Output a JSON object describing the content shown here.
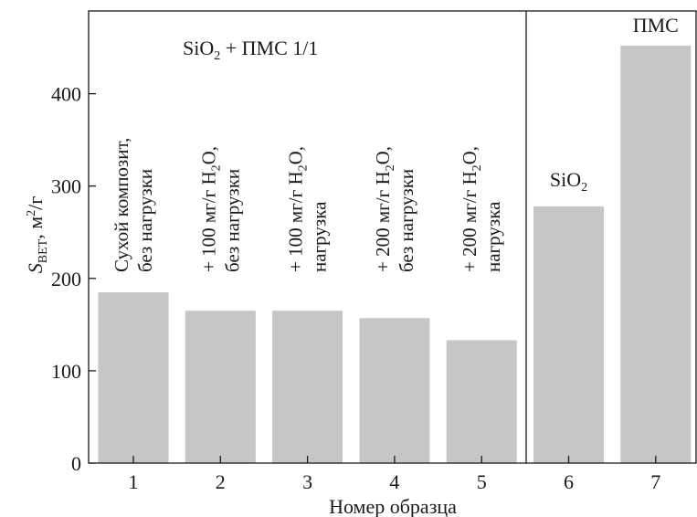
{
  "chart_data": {
    "type": "bar",
    "xlabel": "Номер образца",
    "ylabel": {
      "main": "S",
      "sub": "BET",
      "unit_pre": ", м",
      "unit_sup": "2",
      "unit_post": "/г"
    },
    "ylim": [
      0,
      450
    ],
    "yticks": [
      "0",
      "100",
      "200",
      "300",
      "400"
    ],
    "grid": false,
    "legend": "none",
    "bar_color": "#c6c6c6",
    "categories": [
      "1",
      "2",
      "3",
      "4",
      "5",
      "6",
      "7"
    ],
    "values": [
      185,
      165,
      165,
      157,
      133,
      278,
      452
    ],
    "group_title": {
      "pre": "SiO",
      "sub": "2",
      "post": " + ПМС 1/1"
    },
    "bar_labels": [
      [
        {
          "pre": "Сухой композит,"
        },
        {
          "pre": "без нагрузки"
        }
      ],
      [
        {
          "pre": "+ 100 мг/г Н",
          "sub": "2",
          "post": "О,"
        },
        {
          "pre": "без нагрузки"
        }
      ],
      [
        {
          "pre": "+ 100 мг/г Н",
          "sub": "2",
          "post": "О,"
        },
        {
          "pre": "нагрузка"
        }
      ],
      [
        {
          "pre": "+ 200 мг/г Н",
          "sub": "2",
          "post": "О,"
        },
        {
          "pre": "без нагрузки"
        }
      ],
      [
        {
          "pre": "+ 200 мг/г Н",
          "sub": "2",
          "post": "О,"
        },
        {
          "pre": "нагрузка"
        }
      ]
    ],
    "top_labels": [
      {
        "bar": 6,
        "pre": "SiO",
        "sub": "2"
      },
      {
        "bar": 7,
        "pre": "ПМС"
      }
    ]
  }
}
